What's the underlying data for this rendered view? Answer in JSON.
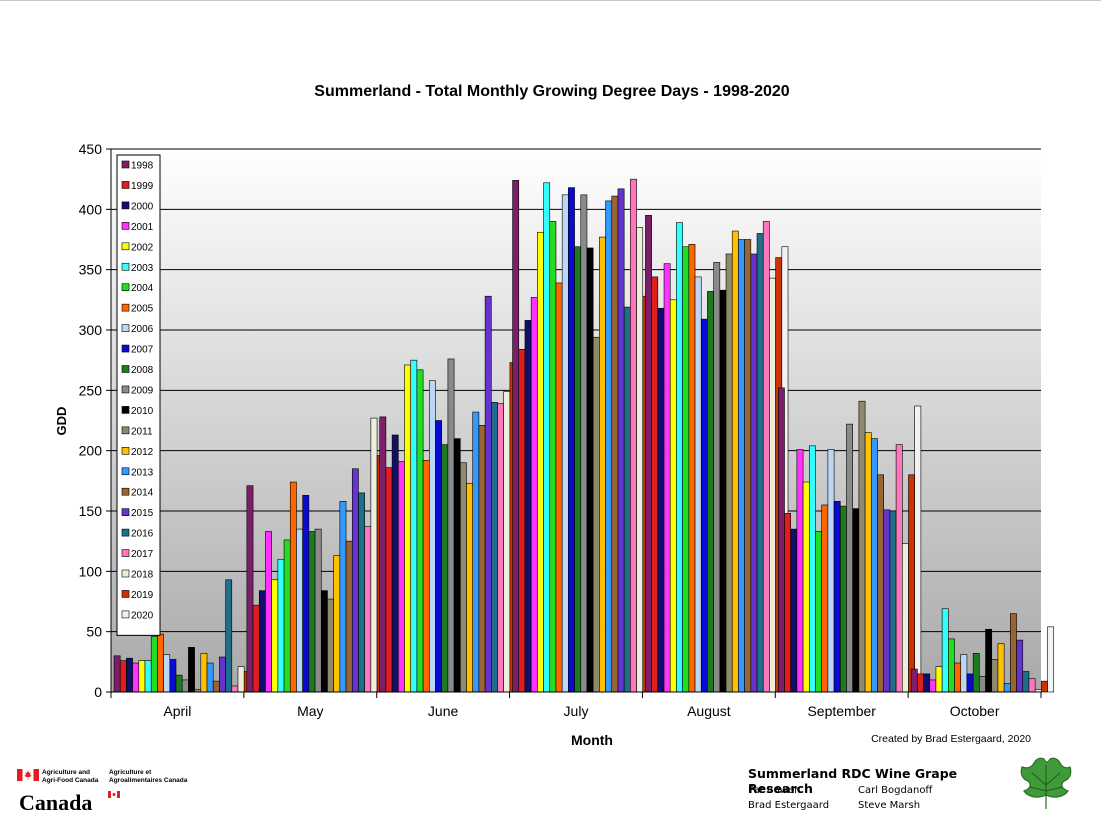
{
  "chart_data": {
    "type": "bar",
    "title": "Summerland - Total Monthly Growing Degree Days - 1998-2020",
    "xlabel": "Month",
    "ylabel": "GDD",
    "ylim": [
      0,
      450
    ],
    "yticks": [
      0,
      50,
      100,
      150,
      200,
      250,
      300,
      350,
      400,
      450
    ],
    "grid": true,
    "legend_position": "top-left",
    "categories": [
      "April",
      "May",
      "June",
      "July",
      "August",
      "September",
      "October"
    ],
    "series": [
      {
        "name": "1998",
        "color": "#7b1f6a",
        "values": [
          30,
          171,
          228,
          424,
          395,
          252,
          19
        ]
      },
      {
        "name": "1999",
        "color": "#e01e1e",
        "values": [
          26,
          72,
          186,
          284,
          344,
          148,
          15
        ]
      },
      {
        "name": "2000",
        "color": "#10106a",
        "values": [
          28,
          84,
          213,
          308,
          318,
          135,
          15
        ]
      },
      {
        "name": "2001",
        "color": "#ff33ff",
        "values": [
          24,
          133,
          191,
          327,
          355,
          201,
          10
        ]
      },
      {
        "name": "2002",
        "color": "#ffff00",
        "values": [
          26,
          93,
          271,
          381,
          325,
          174,
          21
        ]
      },
      {
        "name": "2003",
        "color": "#33ffff",
        "values": [
          26,
          110,
          275,
          422,
          389,
          204,
          69
        ]
      },
      {
        "name": "2004",
        "color": "#22dd22",
        "values": [
          46,
          126,
          267,
          390,
          369,
          133,
          44
        ]
      },
      {
        "name": "2005",
        "color": "#ff6600",
        "values": [
          48,
          174,
          192,
          339,
          371,
          155,
          24
        ]
      },
      {
        "name": "2006",
        "color": "#bcd6f5",
        "values": [
          31,
          135,
          258,
          412,
          344,
          201,
          31
        ]
      },
      {
        "name": "2007",
        "color": "#0a0ad0",
        "values": [
          27,
          163,
          225,
          418,
          309,
          158,
          15
        ]
      },
      {
        "name": "2008",
        "color": "#1e7a1e",
        "values": [
          14,
          133,
          205,
          369,
          332,
          154,
          32
        ]
      },
      {
        "name": "2009",
        "color": "#8a8a8a",
        "values": [
          10,
          135,
          276,
          412,
          356,
          222,
          13
        ]
      },
      {
        "name": "2010",
        "color": "#000000",
        "values": [
          37,
          84,
          210,
          368,
          333,
          152,
          52
        ]
      },
      {
        "name": "2011",
        "color": "#8f8a6e",
        "values": [
          2,
          77,
          190,
          294,
          363,
          241,
          27
        ]
      },
      {
        "name": "2012",
        "color": "#ffc000",
        "values": [
          32,
          113,
          173,
          377,
          382,
          215,
          40
        ]
      },
      {
        "name": "2013",
        "color": "#3399ff",
        "values": [
          24,
          158,
          232,
          407,
          375,
          210,
          7
        ]
      },
      {
        "name": "2014",
        "color": "#996633",
        "values": [
          9,
          125,
          221,
          411,
          375,
          180,
          65
        ]
      },
      {
        "name": "2015",
        "color": "#6633cc",
        "values": [
          29,
          185,
          328,
          417,
          363,
          151,
          43
        ]
      },
      {
        "name": "2016",
        "color": "#1f6f8b",
        "values": [
          93,
          165,
          240,
          319,
          380,
          150,
          17
        ]
      },
      {
        "name": "2017",
        "color": "#ff77bb",
        "values": [
          5,
          137,
          239,
          425,
          390,
          205,
          11
        ]
      },
      {
        "name": "2018",
        "color": "#eeeedd",
        "values": [
          21,
          227,
          249,
          385,
          343,
          123,
          2
        ]
      },
      {
        "name": "2019",
        "color": "#cc3300",
        "values": [
          17,
          196,
          273,
          328,
          360,
          180,
          9
        ]
      },
      {
        "name": "2020",
        "color": "#f2f2f2",
        "values": [
          22,
          124,
          218,
          337,
          369,
          237,
          54
        ]
      }
    ]
  },
  "credit": "Created by Brad Estergaard, 2020",
  "aafc": {
    "line1_en": "Agriculture and",
    "line2_en": "Agri-Food Canada",
    "line1_fr": "Agriculture et",
    "line2_fr": "Agroalimentaires Canada",
    "wordmark": "Canada"
  },
  "research": {
    "title": "Summerland RDC Wine Grape Research",
    "names": [
      "Pat Bowen",
      "Carl Bogdanoff",
      "Brad Estergaard",
      "Steve Marsh"
    ]
  },
  "icons": {
    "flag": "canada-flag-icon",
    "leaf": "grape-leaf-icon"
  }
}
